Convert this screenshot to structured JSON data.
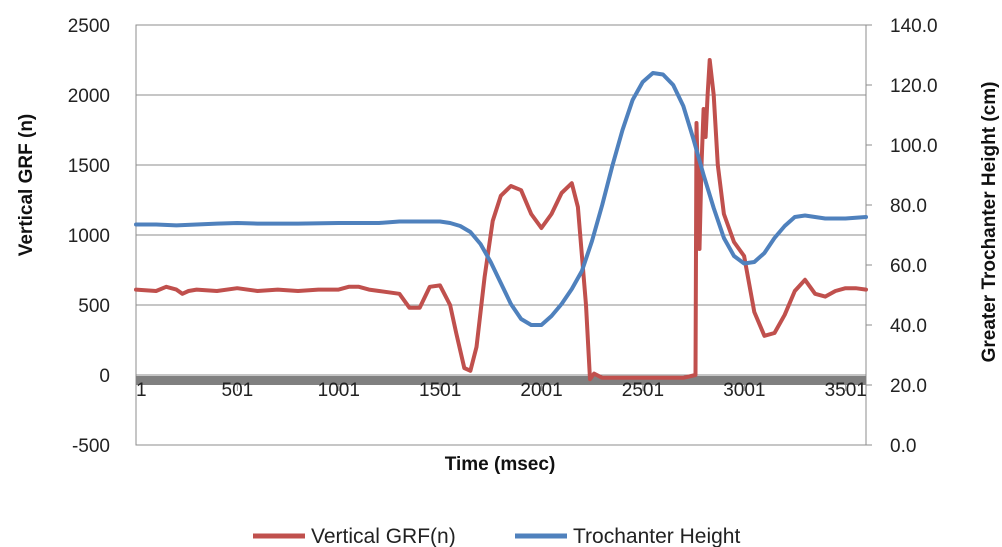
{
  "chart_data": {
    "type": "line",
    "xlabel": "Time (msec)",
    "ylabel": "Vertical GRF (n)",
    "y2label": "Greater Trochanter Height (cm)",
    "xlim": [
      1,
      3601
    ],
    "ylim": [
      -500,
      2500
    ],
    "y2lim": [
      0,
      140
    ],
    "x_ticks": [
      1,
      501,
      1001,
      1501,
      2001,
      2501,
      3001,
      3501
    ],
    "x_tick_labels": [
      "1",
      "501",
      "1001",
      "1501",
      "2001",
      "2501",
      "3001",
      "3501"
    ],
    "y_ticks": [
      -500,
      0,
      500,
      1000,
      1500,
      2000,
      2500
    ],
    "y_tick_labels": [
      "-500",
      "0",
      "500",
      "1000",
      "1500",
      "2000",
      "2500"
    ],
    "y2_ticks": [
      0,
      20,
      40,
      60,
      80,
      100,
      120,
      140
    ],
    "y2_tick_labels": [
      "0.0",
      "20.0",
      "40.0",
      "60.0",
      "80.0",
      "100.0",
      "120.0",
      "140.0"
    ],
    "grid": "horizontal",
    "legend_position": "bottom",
    "series": [
      {
        "name": "Vertical GRF(n)",
        "axis": "left",
        "color": "#C0504D",
        "x": [
          1,
          100,
          150,
          200,
          230,
          260,
          300,
          400,
          500,
          600,
          700,
          800,
          900,
          1000,
          1050,
          1100,
          1150,
          1200,
          1300,
          1350,
          1400,
          1450,
          1500,
          1550,
          1580,
          1620,
          1650,
          1680,
          1720,
          1760,
          1800,
          1850,
          1900,
          1950,
          2000,
          2050,
          2100,
          2150,
          2180,
          2220,
          2240,
          2260,
          2300,
          2400,
          2500,
          2600,
          2700,
          2760,
          2765,
          2780,
          2790,
          2800,
          2810,
          2820,
          2830,
          2850,
          2870,
          2900,
          2950,
          3000,
          3050,
          3100,
          3150,
          3200,
          3250,
          3300,
          3350,
          3400,
          3450,
          3500,
          3550,
          3601
        ],
        "values": [
          610,
          600,
          630,
          610,
          580,
          600,
          610,
          600,
          620,
          600,
          610,
          600,
          610,
          610,
          630,
          630,
          610,
          600,
          580,
          480,
          480,
          630,
          640,
          500,
          300,
          50,
          30,
          200,
          700,
          1100,
          1280,
          1350,
          1320,
          1150,
          1050,
          1150,
          1300,
          1370,
          1200,
          500,
          -30,
          10,
          -20,
          -20,
          -20,
          -20,
          -20,
          0,
          1800,
          900,
          1500,
          1900,
          1700,
          2000,
          2250,
          2000,
          1500,
          1150,
          950,
          850,
          450,
          280,
          300,
          430,
          600,
          680,
          580,
          560,
          600,
          620,
          620,
          610
        ]
      },
      {
        "name": "Trochanter Height",
        "axis": "right",
        "color": "#4F81BD",
        "x": [
          1,
          100,
          200,
          300,
          400,
          500,
          600,
          800,
          1000,
          1200,
          1300,
          1400,
          1500,
          1550,
          1600,
          1650,
          1700,
          1750,
          1800,
          1850,
          1900,
          1950,
          2000,
          2050,
          2100,
          2150,
          2200,
          2250,
          2300,
          2350,
          2400,
          2450,
          2500,
          2550,
          2600,
          2650,
          2700,
          2750,
          2800,
          2850,
          2900,
          2950,
          3000,
          3050,
          3100,
          3150,
          3200,
          3250,
          3300,
          3350,
          3400,
          3500,
          3601
        ],
        "values": [
          73.5,
          73.5,
          73.2,
          73.5,
          73.8,
          74,
          73.8,
          73.8,
          74,
          74,
          74.5,
          74.5,
          74.5,
          74,
          73,
          71,
          67,
          61,
          54,
          47,
          42,
          40,
          40,
          43,
          47,
          52,
          58,
          68,
          80,
          93,
          105,
          115,
          121,
          124,
          123.5,
          120,
          113,
          102,
          90,
          79,
          69,
          63,
          60.5,
          61,
          64,
          69,
          73,
          76,
          76.5,
          76,
          75.5,
          75.5,
          76
        ]
      }
    ]
  }
}
